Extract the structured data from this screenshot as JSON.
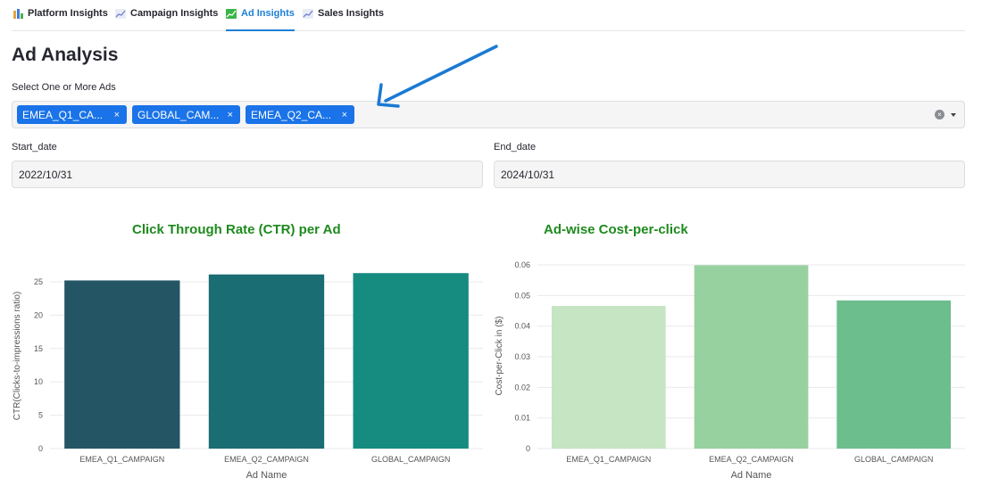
{
  "tabs": [
    {
      "label": "Platform Insights",
      "icon": "bar-chart-icon",
      "active": false
    },
    {
      "label": "Campaign Insights",
      "icon": "line-chart-icon",
      "active": false
    },
    {
      "label": "Ad Insights",
      "icon": "trend-up-icon",
      "active": true
    },
    {
      "label": "Sales Insights",
      "icon": "line-chart-icon",
      "active": false
    }
  ],
  "page_title": "Ad Analysis",
  "ad_select": {
    "label": "Select One or More Ads",
    "chips": [
      "EMEA_Q1_CA...",
      "GLOBAL_CAM...",
      "EMEA_Q2_CA..."
    ],
    "chip_remove": "×",
    "clear": "×"
  },
  "start_date": {
    "label": "Start_date",
    "value": "2022/10/31"
  },
  "end_date": {
    "label": "End_date",
    "value": "2024/10/31"
  },
  "colors": {
    "accent": "#1e7fd6",
    "chip": "#1a73e8",
    "chart_title": "#1e8a1e",
    "arrow": "#1a7ad4"
  },
  "chart_data": [
    {
      "type": "bar",
      "title": "Click Through Rate (CTR) per Ad",
      "xlabel": "Ad Name",
      "ylabel": "CTR(Clicks-to-impressions ratio)",
      "categories": [
        "EMEA_Q1_CAMPAIGN",
        "EMEA_Q2_CAMPAIGN",
        "GLOBAL_CAMPAIGN"
      ],
      "values": [
        25.2,
        26.1,
        26.3
      ],
      "colors": [
        "#245565",
        "#1a6d72",
        "#168b80"
      ],
      "ylim": [
        0,
        27.8
      ],
      "yticks": [
        0,
        5,
        10,
        15,
        20,
        25
      ],
      "grid": true
    },
    {
      "type": "bar",
      "title": "Ad-wise Cost-per-click",
      "xlabel": "Ad Name",
      "ylabel": "Cost-per-Click in ($)",
      "categories": [
        "EMEA_Q1_CAMPAIGN",
        "EMEA_Q2_CAMPAIGN",
        "GLOBAL_CAMPAIGN"
      ],
      "values": [
        0.0466,
        0.0599,
        0.0484
      ],
      "colors": [
        "#c6e5c2",
        "#98d1a0",
        "#6dbe8d"
      ],
      "ylim": [
        0,
        0.0606
      ],
      "yticks": [
        0,
        0.01,
        0.02,
        0.03,
        0.04,
        0.05,
        0.06
      ],
      "grid": true
    }
  ]
}
